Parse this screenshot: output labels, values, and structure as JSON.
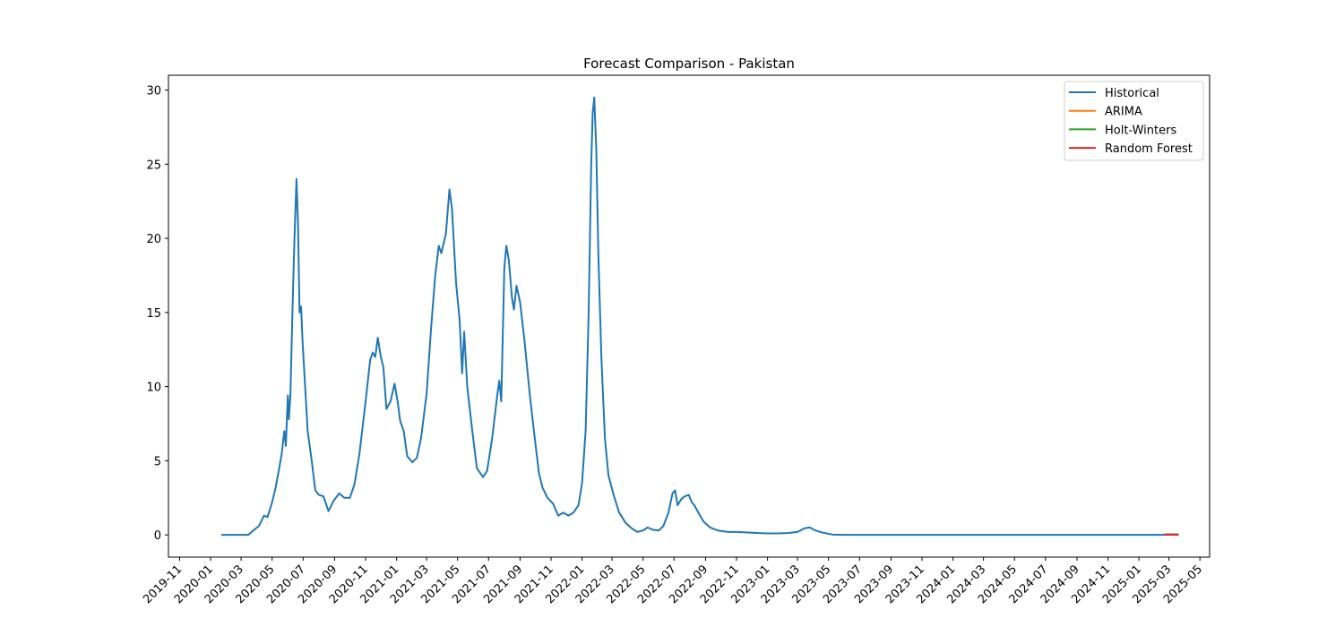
{
  "chart_data": {
    "type": "line",
    "title": "Forecast Comparison - Pakistan",
    "xlabel": "",
    "ylabel": "",
    "x_range": [
      "2019-10-10",
      "2025-05-20"
    ],
    "ylim": [
      -1.5,
      31
    ],
    "y_ticks": [
      0,
      5,
      10,
      15,
      20,
      25,
      30
    ],
    "x_ticks": [
      "2019-11",
      "2020-01",
      "2020-03",
      "2020-05",
      "2020-07",
      "2020-09",
      "2020-11",
      "2021-01",
      "2021-03",
      "2021-05",
      "2021-07",
      "2021-09",
      "2021-11",
      "2022-01",
      "2022-03",
      "2022-05",
      "2022-07",
      "2022-09",
      "2022-11",
      "2023-01",
      "2023-03",
      "2023-05",
      "2023-07",
      "2023-09",
      "2023-11",
      "2024-01",
      "2024-03",
      "2024-05",
      "2024-07",
      "2024-09",
      "2024-11",
      "2025-01",
      "2025-03",
      "2025-05"
    ],
    "grid": false,
    "legend_position": "top-right",
    "series": [
      {
        "name": "Historical",
        "color": "#1f77b4",
        "points": [
          [
            "2020-01-22",
            0
          ],
          [
            "2020-03-15",
            0
          ],
          [
            "2020-03-25",
            0.3
          ],
          [
            "2020-04-05",
            0.6
          ],
          [
            "2020-04-15",
            1.3
          ],
          [
            "2020-04-22",
            1.2
          ],
          [
            "2020-05-01",
            2.2
          ],
          [
            "2020-05-08",
            3.2
          ],
          [
            "2020-05-15",
            4.5
          ],
          [
            "2020-05-20",
            5.5
          ],
          [
            "2020-05-25",
            7.0
          ],
          [
            "2020-05-28",
            6.0
          ],
          [
            "2020-06-01",
            9.4
          ],
          [
            "2020-06-03",
            7.8
          ],
          [
            "2020-06-06",
            9.4
          ],
          [
            "2020-06-10",
            15
          ],
          [
            "2020-06-14",
            20
          ],
          [
            "2020-06-18",
            24.0
          ],
          [
            "2020-06-21",
            21
          ],
          [
            "2020-06-24",
            15
          ],
          [
            "2020-06-27",
            15.4
          ],
          [
            "2020-06-30",
            13
          ],
          [
            "2020-07-05",
            10
          ],
          [
            "2020-07-10",
            7
          ],
          [
            "2020-07-18",
            5
          ],
          [
            "2020-07-25",
            3
          ],
          [
            "2020-08-01",
            2.7
          ],
          [
            "2020-08-10",
            2.6
          ],
          [
            "2020-08-20",
            1.6
          ],
          [
            "2020-08-30",
            2.3
          ],
          [
            "2020-09-10",
            2.8
          ],
          [
            "2020-09-20",
            2.5
          ],
          [
            "2020-10-01",
            2.5
          ],
          [
            "2020-10-10",
            3.4
          ],
          [
            "2020-10-20",
            5.5
          ],
          [
            "2020-11-01",
            9
          ],
          [
            "2020-11-10",
            11.8
          ],
          [
            "2020-11-15",
            12.3
          ],
          [
            "2020-11-20",
            12.0
          ],
          [
            "2020-11-25",
            13.3
          ],
          [
            "2020-12-01",
            12.0
          ],
          [
            "2020-12-06",
            11.3
          ],
          [
            "2020-12-12",
            8.5
          ],
          [
            "2020-12-20",
            9.0
          ],
          [
            "2020-12-28",
            10.2
          ],
          [
            "2021-01-03",
            9.0
          ],
          [
            "2021-01-08",
            7.7
          ],
          [
            "2021-01-15",
            7.0
          ],
          [
            "2021-01-22",
            5.3
          ],
          [
            "2021-02-01",
            4.9
          ],
          [
            "2021-02-10",
            5.2
          ],
          [
            "2021-02-18",
            6.5
          ],
          [
            "2021-03-01",
            9.5
          ],
          [
            "2021-03-10",
            14
          ],
          [
            "2021-03-18",
            17.5
          ],
          [
            "2021-03-25",
            19.5
          ],
          [
            "2021-03-30",
            19.0
          ],
          [
            "2021-04-08",
            20.3
          ],
          [
            "2021-04-15",
            23.3
          ],
          [
            "2021-04-20",
            22.0
          ],
          [
            "2021-04-28",
            17
          ],
          [
            "2021-05-05",
            14.5
          ],
          [
            "2021-05-10",
            10.9
          ],
          [
            "2021-05-14",
            13.7
          ],
          [
            "2021-05-20",
            10.0
          ],
          [
            "2021-05-30",
            7.0
          ],
          [
            "2021-06-08",
            4.5
          ],
          [
            "2021-06-20",
            3.9
          ],
          [
            "2021-06-28",
            4.3
          ],
          [
            "2021-07-08",
            6.5
          ],
          [
            "2021-07-18",
            9.4
          ],
          [
            "2021-07-22",
            10.4
          ],
          [
            "2021-07-26",
            9.0
          ],
          [
            "2021-08-01",
            18
          ],
          [
            "2021-08-05",
            19.5
          ],
          [
            "2021-08-10",
            18.5
          ],
          [
            "2021-08-16",
            16
          ],
          [
            "2021-08-20",
            15.2
          ],
          [
            "2021-08-25",
            16.8
          ],
          [
            "2021-09-01",
            15.7
          ],
          [
            "2021-09-10",
            13
          ],
          [
            "2021-09-20",
            9.5
          ],
          [
            "2021-09-30",
            6.5
          ],
          [
            "2021-10-08",
            4.2
          ],
          [
            "2021-10-15",
            3.2
          ],
          [
            "2021-10-25",
            2.5
          ],
          [
            "2021-11-05",
            2.1
          ],
          [
            "2021-11-15",
            1.3
          ],
          [
            "2021-11-25",
            1.5
          ],
          [
            "2021-12-05",
            1.3
          ],
          [
            "2021-12-15",
            1.5
          ],
          [
            "2021-12-25",
            2.0
          ],
          [
            "2022-01-01",
            3.5
          ],
          [
            "2022-01-08",
            7.0
          ],
          [
            "2022-01-14",
            15
          ],
          [
            "2022-01-19",
            25
          ],
          [
            "2022-01-22",
            28.5
          ],
          [
            "2022-01-25",
            29.5
          ],
          [
            "2022-01-29",
            26
          ],
          [
            "2022-02-02",
            19
          ],
          [
            "2022-02-08",
            12
          ],
          [
            "2022-02-15",
            6.5
          ],
          [
            "2022-02-22",
            4.0
          ],
          [
            "2022-03-05",
            2.6
          ],
          [
            "2022-03-15",
            1.5
          ],
          [
            "2022-03-28",
            0.8
          ],
          [
            "2022-04-10",
            0.4
          ],
          [
            "2022-04-20",
            0.2
          ],
          [
            "2022-05-01",
            0.3
          ],
          [
            "2022-05-10",
            0.5
          ],
          [
            "2022-05-20",
            0.35
          ],
          [
            "2022-06-01",
            0.3
          ],
          [
            "2022-06-10",
            0.6
          ],
          [
            "2022-06-20",
            1.5
          ],
          [
            "2022-06-28",
            2.8
          ],
          [
            "2022-07-03",
            3.0
          ],
          [
            "2022-07-08",
            2.0
          ],
          [
            "2022-07-15",
            2.4
          ],
          [
            "2022-07-22",
            2.6
          ],
          [
            "2022-07-30",
            2.7
          ],
          [
            "2022-08-05",
            2.2
          ],
          [
            "2022-08-10",
            2.0
          ],
          [
            "2022-08-18",
            1.5
          ],
          [
            "2022-08-28",
            0.9
          ],
          [
            "2022-09-10",
            0.5
          ],
          [
            "2022-09-25",
            0.3
          ],
          [
            "2022-10-15",
            0.2
          ],
          [
            "2022-11-01",
            0.2
          ],
          [
            "2022-11-15",
            0.18
          ],
          [
            "2022-12-01",
            0.15
          ],
          [
            "2022-12-15",
            0.12
          ],
          [
            "2023-01-01",
            0.1
          ],
          [
            "2023-01-20",
            0.1
          ],
          [
            "2023-02-10",
            0.12
          ],
          [
            "2023-03-01",
            0.2
          ],
          [
            "2023-03-15",
            0.45
          ],
          [
            "2023-03-25",
            0.5
          ],
          [
            "2023-04-05",
            0.3
          ],
          [
            "2023-04-20",
            0.15
          ],
          [
            "2023-05-10",
            0.02
          ],
          [
            "2023-06-01",
            0
          ],
          [
            "2025-02-20",
            0
          ]
        ]
      },
      {
        "name": "ARIMA",
        "color": "#ff7f0e",
        "points": [
          [
            "2025-02-20",
            0.02
          ],
          [
            "2025-03-20",
            0.02
          ]
        ]
      },
      {
        "name": "Holt-Winters",
        "color": "#2ca02c",
        "points": [
          [
            "2025-02-20",
            0.02
          ],
          [
            "2025-03-20",
            0.02
          ]
        ]
      },
      {
        "name": "Random Forest",
        "color": "#d62728",
        "points": [
          [
            "2025-02-20",
            0.02
          ],
          [
            "2025-03-20",
            0.02
          ]
        ]
      }
    ]
  }
}
